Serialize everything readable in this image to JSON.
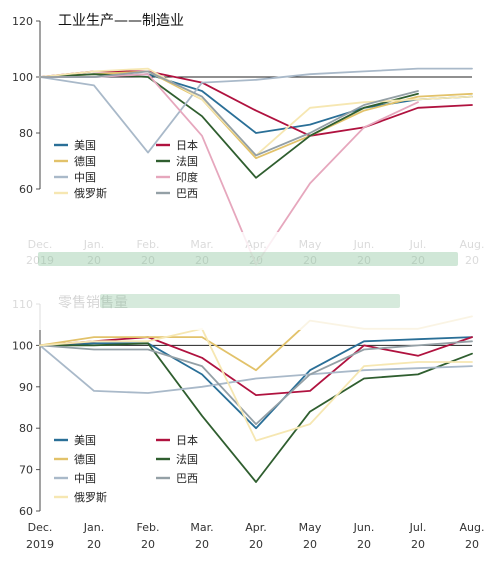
{
  "chart_data": [
    {
      "type": "line",
      "title": "工业生产——制造业",
      "categories": [
        "Dec.\n2019",
        "Jan.\n20",
        "Feb.\n20",
        "Mar.\n20",
        "Apr.\n20",
        "May\n20",
        "Jun.\n20",
        "Jul.\n20",
        "Aug.\n20"
      ],
      "ylim": [
        60,
        120
      ],
      "yticks": [
        60,
        80,
        100,
        120
      ],
      "reference_line": 100,
      "grid": false,
      "legend": "lower-left",
      "series": [
        {
          "name": "美国",
          "color": "#2a6f97",
          "values": [
            100,
            100,
            101,
            95,
            80,
            83,
            89,
            92,
            93
          ]
        },
        {
          "name": "日本",
          "color": "#b0123f",
          "values": [
            100,
            102,
            102,
            98,
            88,
            79,
            82,
            89,
            90
          ]
        },
        {
          "name": "德国",
          "color": "#e2c26a",
          "values": [
            100,
            101,
            102,
            92,
            71,
            79,
            88,
            93,
            94
          ]
        },
        {
          "name": "法国",
          "color": "#2f5e2f",
          "values": [
            100,
            101,
            100,
            86,
            64,
            79,
            89,
            94,
            null
          ]
        },
        {
          "name": "中国",
          "color": "#a9b9c9",
          "values": [
            100,
            97,
            73,
            98,
            99,
            101,
            102,
            103,
            103
          ]
        },
        {
          "name": "印度",
          "color": "#e6a7bd",
          "values": [
            100,
            100,
            101,
            79,
            33,
            62,
            82,
            91,
            null
          ]
        },
        {
          "name": "俄罗斯",
          "color": "#f6e7b2",
          "values": [
            100,
            102,
            103,
            92,
            72,
            89,
            91,
            92,
            93
          ]
        },
        {
          "name": "巴西",
          "color": "#94a0a6",
          "values": [
            100,
            100,
            102,
            93,
            72,
            80,
            90,
            95,
            null
          ]
        }
      ]
    },
    {
      "type": "line",
      "title": "零售销售量",
      "categories": [
        "Dec.\n2019",
        "Jan.\n20",
        "Feb.\n20",
        "Mar.\n20",
        "Apr.\n20",
        "May\n20",
        "Jun.\n20",
        "Jul.\n20",
        "Aug.\n20"
      ],
      "ylim": [
        60,
        110
      ],
      "yticks": [
        60,
        70,
        80,
        90,
        100,
        110
      ],
      "reference_line": 100,
      "grid": false,
      "legend": "lower-left",
      "series": [
        {
          "name": "美国",
          "color": "#2a6f97",
          "values": [
            100,
            100.5,
            100.5,
            93,
            80,
            94,
            101,
            101.5,
            102
          ]
        },
        {
          "name": "日本",
          "color": "#b0123f",
          "values": [
            100,
            101,
            102,
            97,
            88,
            89,
            100,
            97.5,
            102
          ]
        },
        {
          "name": "德国",
          "color": "#e2c26a",
          "values": [
            100,
            102,
            102,
            102,
            94,
            106,
            104,
            104,
            107
          ]
        },
        {
          "name": "法国",
          "color": "#2f5e2f",
          "values": [
            100,
            100,
            100.5,
            83,
            67,
            84,
            92,
            93,
            98
          ]
        },
        {
          "name": "中国",
          "color": "#a9b9c9",
          "values": [
            100,
            89,
            88.5,
            90,
            92,
            93,
            94,
            94.5,
            95
          ]
        },
        {
          "name": "巴西",
          "color": "#94a0a6",
          "values": [
            100,
            99,
            99,
            95,
            81,
            93,
            99,
            100,
            101
          ]
        },
        {
          "name": "俄罗斯",
          "color": "#f6e7b2",
          "values": [
            100,
            101,
            101,
            104,
            77,
            81,
            95,
            96,
            96
          ]
        }
      ]
    }
  ]
}
